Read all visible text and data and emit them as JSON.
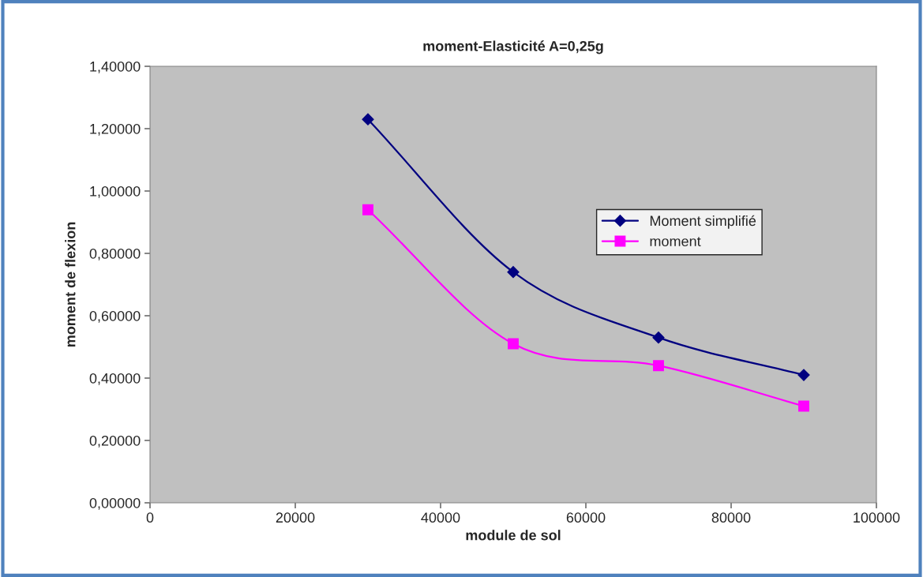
{
  "chart_data": {
    "type": "line",
    "title": "moment-Elasticité A=0,25g",
    "xlabel": "module de sol",
    "ylabel": "moment de flexion",
    "x": [
      30000,
      50000,
      70000,
      90000
    ],
    "series": [
      {
        "name": "Moment simplifié",
        "color": "#000080",
        "marker": "diamond",
        "values": [
          1.23,
          0.74,
          0.53,
          0.41
        ]
      },
      {
        "name": "moment",
        "color": "#ff00ff",
        "marker": "square",
        "values": [
          0.94,
          0.51,
          0.44,
          0.31
        ]
      }
    ],
    "xlim": [
      0,
      100000
    ],
    "xticks": [
      0,
      20000,
      40000,
      60000,
      80000,
      100000
    ],
    "ylim": [
      0,
      1.4
    ],
    "yticks": [
      {
        "value": 0,
        "label": "0,00000"
      },
      {
        "value": 0.2,
        "label": "0,20000"
      },
      {
        "value": 0.4,
        "label": "0,40000"
      },
      {
        "value": 0.6,
        "label": "0,60000"
      },
      {
        "value": 0.8,
        "label": "0,80000"
      },
      {
        "value": 1.0,
        "label": "1,00000"
      },
      {
        "value": 1.2,
        "label": "1,20000"
      },
      {
        "value": 1.4,
        "label": "1,40000"
      }
    ],
    "grid": false,
    "legend": "right"
  }
}
